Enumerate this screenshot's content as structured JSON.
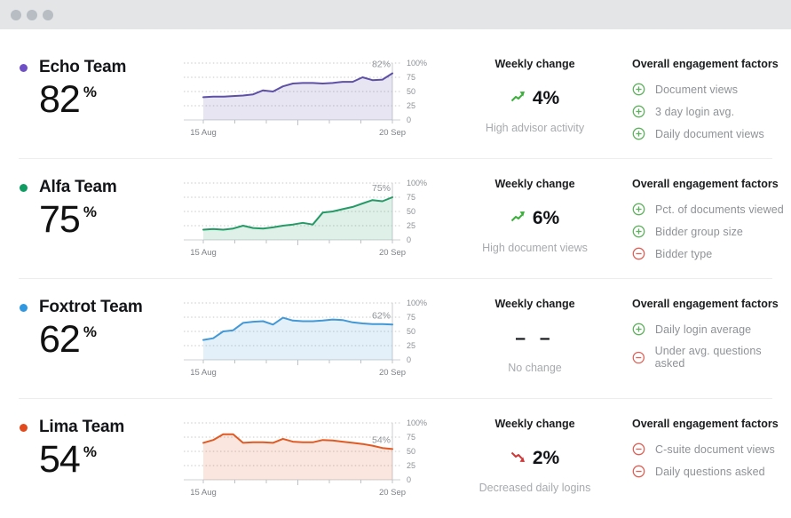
{
  "titlebar": {
    "window_dot_icons": [
      "window-dot",
      "window-dot",
      "window-dot"
    ],
    "bg_color": "#e4e5e7",
    "dot_color": "#b8bdc3"
  },
  "labels": {
    "weekly_change": "Weekly change",
    "factors": "Overall engagement factors"
  },
  "colors": {
    "up_arrow": "#3cae3c",
    "down_arrow": "#cf3838",
    "plus_icon": "#5fb05f",
    "minus_icon": "#dd6156",
    "grid_line": "#c8c8c8",
    "axis_line": "#cdd1d4",
    "end_line": "#c9cdd1",
    "axis_text": "#8d9196",
    "chart_label_text": "#8f9398",
    "divider": "#ededee"
  },
  "teams": [
    {
      "name": "Echo Team",
      "score": "82",
      "score_unit": "%",
      "dot_color": "#6f4fc6",
      "line_color": "#5e51a5",
      "weekly_change": {
        "direction": "up",
        "value": "4%",
        "caption": "High advisor activity"
      },
      "factors": [
        {
          "sign": "plus",
          "label": "Document views"
        },
        {
          "sign": "plus",
          "label": "3 day login avg."
        },
        {
          "sign": "plus",
          "label": "Daily document views"
        }
      ]
    },
    {
      "name": "Alfa Team",
      "score": "75",
      "score_unit": "%",
      "dot_color": "#0f9c62",
      "line_color": "#259a67",
      "weekly_change": {
        "direction": "up",
        "value": "6%",
        "caption": "High document views"
      },
      "factors": [
        {
          "sign": "plus",
          "label": "Pct. of documents viewed"
        },
        {
          "sign": "plus",
          "label": "Bidder group size"
        },
        {
          "sign": "minus",
          "label": "Bidder type"
        }
      ]
    },
    {
      "name": "Foxtrot Team",
      "score": "62",
      "score_unit": "%",
      "dot_color": "#2f98e0",
      "line_color": "#4398d6",
      "weekly_change": {
        "direction": "none",
        "value": "– –",
        "caption": "No change"
      },
      "factors": [
        {
          "sign": "plus",
          "label": "Daily login average"
        },
        {
          "sign": "minus",
          "label": "Under avg. questions asked"
        }
      ]
    },
    {
      "name": "Lima Team",
      "score": "54",
      "score_unit": "%",
      "dot_color": "#e2491c",
      "line_color": "#e05a24",
      "weekly_change": {
        "direction": "down",
        "value": "2%",
        "caption": "Decreased daily logins"
      },
      "factors": [
        {
          "sign": "minus",
          "label": "C-suite document views"
        },
        {
          "sign": "minus",
          "label": "Daily questions asked"
        }
      ]
    }
  ],
  "chart_data": [
    {
      "type": "area",
      "title": "Echo Team engagement",
      "x_start": "15 Aug",
      "x_end": "20 Sep",
      "y_ticks": [
        "100%",
        "75",
        "50",
        "25",
        "0"
      ],
      "ylim": [
        0,
        100
      ],
      "grid": "dotted",
      "end_label": "82%",
      "values": [
        40,
        41,
        41,
        42,
        43,
        45,
        52,
        50,
        59,
        64,
        65,
        65,
        64,
        65,
        67,
        67,
        75,
        70,
        71,
        82
      ]
    },
    {
      "type": "area",
      "title": "Alfa Team engagement",
      "x_start": "15 Aug",
      "x_end": "20 Sep",
      "y_ticks": [
        "100%",
        "75",
        "50",
        "25",
        "0"
      ],
      "ylim": [
        0,
        100
      ],
      "grid": "dotted",
      "end_label": "75%",
      "values": [
        18,
        19,
        18,
        20,
        25,
        21,
        20,
        22,
        25,
        27,
        30,
        27,
        48,
        50,
        54,
        58,
        64,
        70,
        68,
        75
      ]
    },
    {
      "type": "area",
      "title": "Foxtrot Team engagement",
      "x_start": "15 Aug",
      "x_end": "20 Sep",
      "y_ticks": [
        "100%",
        "75",
        "50",
        "25",
        "0"
      ],
      "ylim": [
        0,
        100
      ],
      "grid": "dotted",
      "end_label": "62%",
      "values": [
        35,
        38,
        50,
        52,
        65,
        67,
        68,
        62,
        74,
        69,
        68,
        68,
        69,
        71,
        70,
        66,
        64,
        63,
        63,
        62
      ]
    },
    {
      "type": "area",
      "title": "Lima Team engagement",
      "x_start": "15 Aug",
      "x_end": "20 Sep",
      "y_ticks": [
        "100%",
        "75",
        "50",
        "25",
        "0"
      ],
      "ylim": [
        0,
        100
      ],
      "grid": "dotted",
      "end_label": "54%",
      "values": [
        65,
        70,
        80,
        80,
        65,
        66,
        66,
        65,
        72,
        67,
        66,
        66,
        70,
        69,
        67,
        65,
        63,
        60,
        56,
        54
      ]
    }
  ]
}
